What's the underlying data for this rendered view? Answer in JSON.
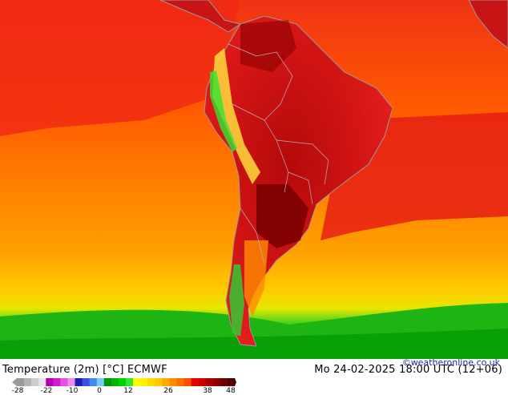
{
  "title": "Temperature (2m) [°C] ECMWF",
  "datetime": "Mo 24-02-2025 18:00 UTC (12+06)",
  "credit": "©weatheronline.co.uk",
  "colorbar": {
    "colors": [
      "#9a9a9a",
      "#b4b4b4",
      "#cdcdcd",
      "#e6e6e6",
      "#b400b4",
      "#d21ed2",
      "#e650e6",
      "#f08cf0",
      "#1e1eb4",
      "#3c50dc",
      "#3c8cf0",
      "#78c8f8",
      "#009600",
      "#00b400",
      "#00d200",
      "#32e632",
      "#fffa00",
      "#fff000",
      "#ffdc00",
      "#ffc800",
      "#ffaa00",
      "#ff8c00",
      "#ff6e00",
      "#ff4b00",
      "#e60000",
      "#c80000",
      "#aa0000",
      "#8c0000",
      "#6e0000",
      "#500000"
    ],
    "ticks": [
      "-28",
      "-22",
      "-10",
      "0",
      "12",
      "26",
      "38",
      "48"
    ]
  },
  "map_colors": {
    "ocean_warm": "#ff6400",
    "ocean_hot": "#f03214",
    "land_hot": "#d21414",
    "land_hottest": "#960a0a",
    "ocean_mid": "#ff9600",
    "ocean_cool": "#ffc800",
    "cold_band": "#1ec814",
    "andes": "#ffdc3c",
    "coastline": "#9a9a9a"
  }
}
